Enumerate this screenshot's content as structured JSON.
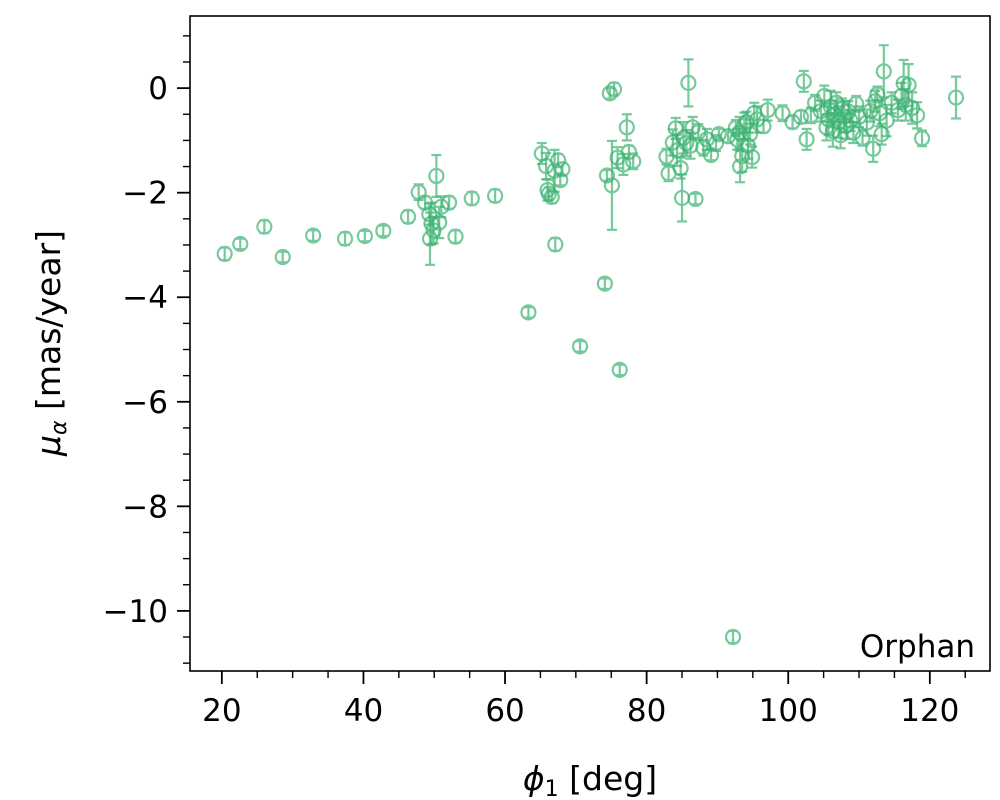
{
  "chart_data": {
    "type": "scatter",
    "title": "",
    "xlabel": {
      "symbol": "ϕ",
      "subscript": "1",
      "unit": " [deg]"
    },
    "ylabel": {
      "symbol": "μ",
      "subscript": "α",
      "unit": " [mas/year]"
    },
    "xlim": [
      15.5,
      128.5
    ],
    "ylim": [
      -11.15,
      1.38
    ],
    "xticks": [
      20,
      40,
      60,
      80,
      100,
      120
    ],
    "xtick_labels": [
      "20",
      "40",
      "60",
      "80",
      "100",
      "120"
    ],
    "yticks": [
      0,
      -2,
      -4,
      -6,
      -8,
      -10
    ],
    "ytick_labels": [
      "0",
      "−2",
      "−4",
      "−6",
      "−8",
      "−10"
    ],
    "x_minor_step": 5,
    "y_minor_step": 0.5,
    "grid": false,
    "marker_color": "#3cb371",
    "legend": {
      "label": "Orphan",
      "position": "bottom-right"
    },
    "series": [
      {
        "name": "Orphan",
        "points": [
          [
            20.4,
            -3.17,
            0.12
          ],
          [
            22.6,
            -2.98,
            0.1
          ],
          [
            26.0,
            -2.65,
            0.12
          ],
          [
            28.6,
            -3.23,
            0.1
          ],
          [
            32.9,
            -2.82,
            0.1
          ],
          [
            37.4,
            -2.88,
            0.12
          ],
          [
            40.2,
            -2.83,
            0.1
          ],
          [
            42.8,
            -2.73,
            0.1
          ],
          [
            46.3,
            -2.46,
            0.12
          ],
          [
            47.8,
            -1.99,
            0.15
          ],
          [
            48.7,
            -2.19,
            0.12
          ],
          [
            49.3,
            -2.41,
            0.2
          ],
          [
            49.4,
            -2.88,
            0.5
          ],
          [
            49.6,
            -2.59,
            0.4
          ],
          [
            49.9,
            -2.72,
            0.25
          ],
          [
            50.3,
            -1.68,
            0.4
          ],
          [
            50.7,
            -2.57,
            0.3
          ],
          [
            51.0,
            -2.27,
            0.2
          ],
          [
            52.1,
            -2.19,
            0.12
          ],
          [
            53.0,
            -2.84,
            0.12
          ],
          [
            55.3,
            -2.11,
            0.12
          ],
          [
            58.6,
            -2.06,
            0.12
          ],
          [
            63.3,
            -4.29,
            0.1
          ],
          [
            65.2,
            -1.25,
            0.2
          ],
          [
            65.8,
            -1.49,
            0.25
          ],
          [
            66.0,
            -1.95,
            0.2
          ],
          [
            66.2,
            -2.02,
            0.12
          ],
          [
            66.6,
            -2.08,
            0.12
          ],
          [
            67.0,
            -1.58,
            0.4
          ],
          [
            67.1,
            -2.99,
            0.12
          ],
          [
            67.5,
            -1.38,
            0.12
          ],
          [
            67.8,
            -1.76,
            0.1
          ],
          [
            68.1,
            -1.55,
            0.12
          ],
          [
            70.6,
            -4.94,
            0.1
          ],
          [
            74.1,
            -3.74,
            0.1
          ],
          [
            74.4,
            -1.67,
            0.1
          ],
          [
            74.8,
            -0.1,
            0.1
          ],
          [
            75.1,
            -1.86,
            0.85
          ],
          [
            75.4,
            -0.02,
            0.12
          ],
          [
            75.9,
            -1.33,
            0.2
          ],
          [
            76.2,
            -5.39,
            0.1
          ],
          [
            76.7,
            -1.46,
            0.2
          ],
          [
            77.2,
            -0.75,
            0.25
          ],
          [
            77.5,
            -1.22,
            0.12
          ],
          [
            78.1,
            -1.4,
            0.15
          ],
          [
            82.8,
            -1.31,
            0.15
          ],
          [
            83.1,
            -1.63,
            0.15
          ],
          [
            83.7,
            -1.04,
            0.25
          ],
          [
            84.1,
            -0.77,
            0.2
          ],
          [
            84.3,
            -1.19,
            0.3
          ],
          [
            84.8,
            -1.53,
            0.2
          ],
          [
            85.0,
            -2.1,
            0.45
          ],
          [
            85.2,
            -0.95,
            0.3
          ],
          [
            85.6,
            -1.05,
            0.25
          ],
          [
            85.9,
            0.1,
            0.45
          ],
          [
            86.2,
            -1.1,
            0.25
          ],
          [
            86.5,
            -0.75,
            0.2
          ],
          [
            86.9,
            -2.12,
            0.1
          ],
          [
            87.3,
            -0.84,
            0.15
          ],
          [
            88.0,
            -1.14,
            0.15
          ],
          [
            88.5,
            -0.98,
            0.2
          ],
          [
            89.1,
            -1.28,
            0.1
          ],
          [
            89.8,
            -1.05,
            0.15
          ],
          [
            90.2,
            -0.88,
            0.1
          ],
          [
            91.5,
            -0.92,
            0.12
          ],
          [
            92.6,
            -0.76,
            0.15
          ],
          [
            92.8,
            -0.98,
            0.2
          ],
          [
            93.1,
            -0.85,
            0.3
          ],
          [
            93.2,
            -1.5,
            0.3
          ],
          [
            93.5,
            -1.3,
            0.3
          ],
          [
            93.8,
            -0.72,
            0.25
          ],
          [
            94.1,
            -0.65,
            0.2
          ],
          [
            94.3,
            -1.1,
            0.25
          ],
          [
            94.6,
            -0.88,
            0.2
          ],
          [
            94.9,
            -1.32,
            0.2
          ],
          [
            95.2,
            -0.48,
            0.2
          ],
          [
            95.6,
            -0.6,
            0.25
          ],
          [
            96.5,
            -0.73,
            0.12
          ],
          [
            97.1,
            -0.42,
            0.2
          ],
          [
            99.2,
            -0.48,
            0.15
          ],
          [
            100.6,
            -0.65,
            0.12
          ],
          [
            101.8,
            -0.55,
            0.12
          ],
          [
            102.2,
            0.13,
            0.2
          ],
          [
            102.6,
            -0.98,
            0.2
          ],
          [
            103.2,
            -0.52,
            0.15
          ],
          [
            103.8,
            -0.28,
            0.15
          ],
          [
            104.6,
            -0.44,
            0.2
          ],
          [
            105.1,
            -0.15,
            0.2
          ],
          [
            105.4,
            -0.75,
            0.25
          ],
          [
            105.7,
            -0.6,
            0.3
          ],
          [
            106.0,
            -0.35,
            0.3
          ],
          [
            106.3,
            -0.82,
            0.3
          ],
          [
            106.5,
            -0.5,
            0.25
          ],
          [
            106.8,
            -0.28,
            0.2
          ],
          [
            107.1,
            -0.65,
            0.3
          ],
          [
            107.4,
            -0.9,
            0.25
          ],
          [
            107.6,
            -0.4,
            0.2
          ],
          [
            107.9,
            -0.55,
            0.3
          ],
          [
            108.2,
            -0.72,
            0.25
          ],
          [
            108.5,
            -0.45,
            0.2
          ],
          [
            108.8,
            -0.62,
            0.2
          ],
          [
            109.2,
            -0.85,
            0.2
          ],
          [
            109.6,
            -0.3,
            0.15
          ],
          [
            110.0,
            -0.55,
            0.2
          ],
          [
            110.5,
            -0.95,
            0.15
          ],
          [
            111.1,
            -0.66,
            0.25
          ],
          [
            111.6,
            -0.44,
            0.2
          ],
          [
            112.0,
            -1.16,
            0.25
          ],
          [
            112.3,
            -0.25,
            0.2
          ],
          [
            112.6,
            -0.12,
            0.15
          ],
          [
            112.9,
            -0.48,
            0.25
          ],
          [
            113.2,
            -0.88,
            0.2
          ],
          [
            113.5,
            0.32,
            0.5
          ],
          [
            113.9,
            -0.62,
            0.3
          ],
          [
            114.6,
            -0.28,
            0.2
          ],
          [
            115.5,
            -0.42,
            0.2
          ],
          [
            116.0,
            -0.15,
            0.25
          ],
          [
            116.3,
            0.09,
            0.45
          ],
          [
            116.6,
            -0.32,
            0.3
          ],
          [
            117.0,
            0.06,
            0.4
          ],
          [
            117.5,
            -0.38,
            0.3
          ],
          [
            118.2,
            -0.52,
            0.25
          ],
          [
            118.9,
            -0.96,
            0.15
          ],
          [
            123.7,
            -0.18,
            0.4
          ]
        ]
      }
    ]
  }
}
